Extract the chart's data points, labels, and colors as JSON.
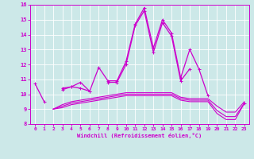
{
  "x": [
    0,
    1,
    2,
    3,
    4,
    5,
    6,
    7,
    8,
    9,
    10,
    11,
    12,
    13,
    14,
    15,
    16,
    17,
    18,
    19,
    20,
    21,
    22,
    23
  ],
  "y_main": [
    10.7,
    9.5,
    null,
    10.4,
    10.5,
    10.8,
    10.2,
    11.8,
    10.9,
    10.9,
    12.2,
    14.7,
    15.8,
    13.1,
    15.0,
    14.1,
    11.1,
    13.0,
    11.7,
    9.9,
    null,
    null,
    null,
    9.4
  ],
  "y_second": [
    null,
    null,
    null,
    10.3,
    10.5,
    10.4,
    10.2,
    null,
    10.8,
    10.8,
    12.0,
    14.6,
    15.6,
    12.8,
    14.8,
    13.9,
    10.9,
    11.7,
    null,
    null,
    null,
    null,
    null,
    null
  ],
  "y_flat1": [
    null,
    null,
    9.0,
    9.1,
    9.3,
    9.4,
    9.5,
    9.6,
    9.7,
    9.8,
    9.9,
    9.9,
    9.9,
    9.9,
    9.9,
    9.9,
    9.6,
    9.5,
    9.5,
    9.5,
    8.7,
    8.3,
    8.3,
    9.4
  ],
  "y_flat2": [
    null,
    null,
    9.0,
    9.2,
    9.4,
    9.5,
    9.6,
    9.7,
    9.8,
    9.9,
    10.0,
    10.0,
    10.0,
    10.0,
    10.0,
    10.0,
    9.7,
    9.6,
    9.6,
    9.6,
    8.9,
    8.5,
    8.5,
    9.4
  ],
  "y_flat3": [
    null,
    null,
    9.0,
    9.3,
    9.5,
    9.6,
    9.7,
    9.8,
    9.9,
    10.0,
    10.1,
    10.1,
    10.1,
    10.1,
    10.1,
    10.1,
    9.8,
    9.7,
    9.7,
    9.7,
    9.2,
    8.8,
    8.8,
    9.5
  ],
  "background_color": "#cce8e8",
  "grid_color": "#aacccc",
  "line_color": "#cc00cc",
  "xlabel": "Windchill (Refroidissement éolien,°C)",
  "ylim": [
    8,
    16
  ],
  "xlim_min": -0.5,
  "xlim_max": 23.5,
  "yticks": [
    8,
    9,
    10,
    11,
    12,
    13,
    14,
    15,
    16
  ],
  "xticks": [
    0,
    1,
    2,
    3,
    4,
    5,
    6,
    7,
    8,
    9,
    10,
    11,
    12,
    13,
    14,
    15,
    16,
    17,
    18,
    19,
    20,
    21,
    22,
    23
  ]
}
